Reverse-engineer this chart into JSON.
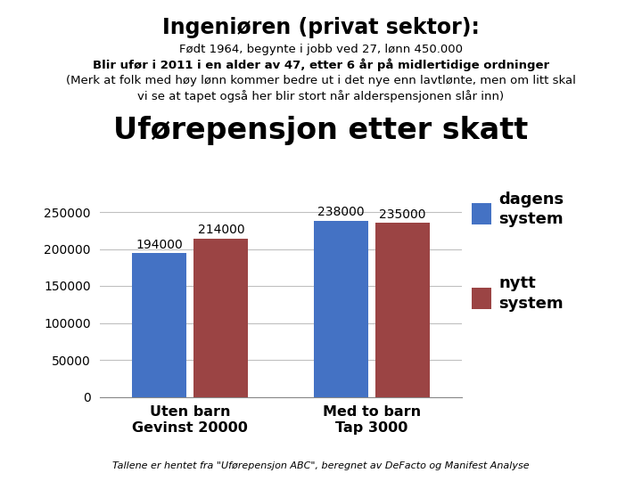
{
  "title_line1": "Ingeniøren (privat sektor):",
  "subtitle_line1": "Født 1964, begynte i jobb ved 27, lønn 450.000",
  "subtitle_line2": "Blir ufør i 2011 i en alder av 47, etter 6 år på midlertidige ordninger",
  "subtitle_line3": "(Merk at folk med høy lønn kommer bedre ut i det nye enn lavtlønte, men om litt skal",
  "subtitle_line4": "vi se at tapet også her blir stort når alderspensjonen slår inn)",
  "chart_title": "Uførepensjon etter skatt",
  "categories": [
    "Uten barn\nGevinst 20000",
    "Med to barn\nTap 3000"
  ],
  "dagens_values": [
    194000,
    238000
  ],
  "nytt_values": [
    214000,
    235000
  ],
  "dagens_color": "#4472C4",
  "nytt_color": "#9B4444",
  "ylim": [
    0,
    270000
  ],
  "yticks": [
    0,
    50000,
    100000,
    150000,
    200000,
    250000
  ],
  "legend_dagens": "dagens\nsystem",
  "legend_nytt": "nytt\nsystem",
  "footer": "Tallene er hentet fra \"Uførepensjon ABC\", beregnet av DeFacto og Manifest Analyse",
  "background_color": "#FFFFFF"
}
